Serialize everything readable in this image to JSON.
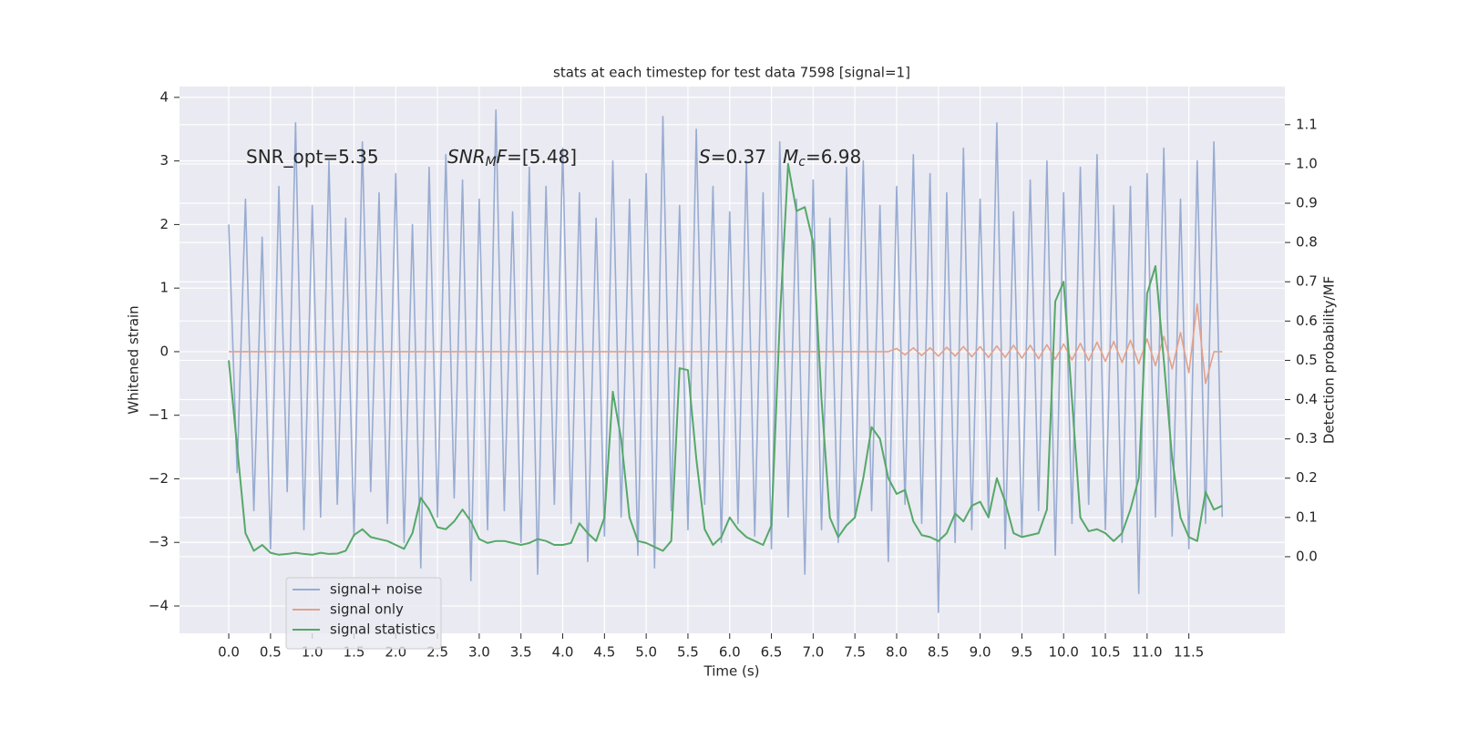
{
  "chart_data": {
    "type": "line",
    "title": "stats at each timestep for test data 7598 [signal=1]",
    "xlabel": "Time (s)",
    "ylabel": "Whitened strain",
    "y2label": "Detection probability/MF",
    "annotations": [
      [
        "SNR_opt=5.35"
      ],
      [
        "SNR",
        "M",
        "F",
        "=[5.48]"
      ],
      [
        "S",
        "=0.37"
      ],
      [
        "M",
        "c",
        "=6.98"
      ]
    ],
    "grid": true,
    "legend": "lower left",
    "xlim": [
      -0.59,
      12.65
    ],
    "ylim": [
      -4.43,
      4.17
    ],
    "y2lim": [
      -0.195,
      1.197
    ],
    "xticks": [
      {
        "value": 0,
        "label": "0.0"
      },
      {
        "value": 0.5,
        "label": "0.5"
      },
      {
        "value": 1,
        "label": "1.0"
      },
      {
        "value": 1.5,
        "label": "1.5"
      },
      {
        "value": 2,
        "label": "2.0"
      },
      {
        "value": 2.5,
        "label": "2.5"
      },
      {
        "value": 3,
        "label": "3.0"
      },
      {
        "value": 3.5,
        "label": "3.5"
      },
      {
        "value": 4,
        "label": "4.0"
      },
      {
        "value": 4.5,
        "label": "4.5"
      },
      {
        "value": 5,
        "label": "5.0"
      },
      {
        "value": 5.5,
        "label": "5.5"
      },
      {
        "value": 6,
        "label": "6.0"
      },
      {
        "value": 6.5,
        "label": "6.5"
      },
      {
        "value": 7,
        "label": "7.0"
      },
      {
        "value": 7.5,
        "label": "7.5"
      },
      {
        "value": 8,
        "label": "8.0"
      },
      {
        "value": 8.5,
        "label": "8.5"
      },
      {
        "value": 9,
        "label": "9.0"
      },
      {
        "value": 9.5,
        "label": "9.5"
      },
      {
        "value": 10,
        "label": "10.0"
      },
      {
        "value": 10.5,
        "label": "10.5"
      },
      {
        "value": 11,
        "label": "11.0"
      },
      {
        "value": 11.5,
        "label": "11.5"
      }
    ],
    "yticks": [
      {
        "value": -4,
        "label": "−4"
      },
      {
        "value": -3,
        "label": "−3"
      },
      {
        "value": -2,
        "label": "−2"
      },
      {
        "value": -1,
        "label": "−1"
      },
      0,
      1,
      2,
      3,
      4
    ],
    "y2ticks": [
      {
        "value": 0,
        "label": "0.0"
      },
      {
        "value": 0.1,
        "label": "0.1"
      },
      {
        "value": 0.2,
        "label": "0.2"
      },
      {
        "value": 0.3,
        "label": "0.3"
      },
      {
        "value": 0.4,
        "label": "0.4"
      },
      {
        "value": 0.5,
        "label": "0.5"
      },
      {
        "value": 0.6,
        "label": "0.6"
      },
      {
        "value": 0.7,
        "label": "0.7"
      },
      {
        "value": 0.8,
        "label": "0.8"
      },
      {
        "value": 0.9,
        "label": "0.9"
      },
      {
        "value": 1,
        "label": "1.0"
      },
      {
        "value": 1.1,
        "label": "1.1"
      }
    ],
    "x": [
      0,
      0.1,
      0.2,
      0.3,
      0.4,
      0.5,
      0.6,
      0.7,
      0.8,
      0.9,
      1,
      1.1,
      1.2,
      1.3,
      1.4,
      1.5,
      1.6,
      1.7,
      1.8,
      1.9,
      2,
      2.1,
      2.2,
      2.3,
      2.4,
      2.5,
      2.6,
      2.7,
      2.8,
      2.9,
      3,
      3.1,
      3.2,
      3.3,
      3.4,
      3.5,
      3.6,
      3.7,
      3.8,
      3.9,
      4,
      4.1,
      4.2,
      4.3,
      4.4,
      4.5,
      4.6,
      4.7,
      4.8,
      4.9,
      5,
      5.1,
      5.2,
      5.3,
      5.4,
      5.5,
      5.6,
      5.7,
      5.8,
      5.9,
      6,
      6.1,
      6.2,
      6.3,
      6.4,
      6.5,
      6.6,
      6.7,
      6.8,
      6.9,
      7,
      7.1,
      7.2,
      7.3,
      7.4,
      7.5,
      7.6,
      7.7,
      7.8,
      7.9,
      8,
      8.1,
      8.2,
      8.3,
      8.4,
      8.5,
      8.6,
      8.7,
      8.8,
      8.9,
      9,
      9.1,
      9.2,
      9.3,
      9.4,
      9.5,
      9.6,
      9.7,
      9.8,
      9.9,
      10,
      10.1,
      10.2,
      10.3,
      10.4,
      10.5,
      10.6,
      10.7,
      10.8,
      10.9,
      11,
      11.1,
      11.2,
      11.3,
      11.4,
      11.5,
      11.6,
      11.7,
      11.8,
      11.9
    ],
    "series": [
      {
        "name": "signal+ noise",
        "color": "#98acd1",
        "values": [
          2.0,
          -1.9,
          2.4,
          -2.5,
          1.8,
          -3.1,
          2.6,
          -2.2,
          3.6,
          -2.8,
          2.3,
          -2.6,
          3.0,
          -2.4,
          2.1,
          -2.9,
          3.3,
          -2.2,
          2.5,
          -2.7,
          2.8,
          -3.0,
          2.0,
          -3.4,
          2.9,
          -2.6,
          3.1,
          -2.3,
          2.7,
          -3.6,
          2.4,
          -2.8,
          3.8,
          -2.5,
          2.2,
          -3.0,
          2.9,
          -3.5,
          2.6,
          -2.4,
          3.2,
          -2.7,
          2.5,
          -3.3,
          2.1,
          -2.9,
          3.0,
          -2.6,
          2.4,
          -3.2,
          2.8,
          -3.4,
          3.7,
          -2.5,
          2.3,
          -2.8,
          3.5,
          -2.4,
          2.6,
          -3.0,
          2.2,
          -2.7,
          3.0,
          -2.9,
          2.5,
          -3.1,
          3.3,
          -2.6,
          2.4,
          -3.5,
          2.7,
          -2.8,
          2.1,
          -3.0,
          2.9,
          -2.6,
          3.0,
          -2.5,
          2.3,
          -3.3,
          2.6,
          -2.4,
          3.1,
          -2.7,
          2.8,
          -4.1,
          2.5,
          -3.0,
          3.2,
          -2.8,
          2.4,
          -2.6,
          3.6,
          -3.1,
          2.2,
          -2.9,
          2.7,
          -2.5,
          3.0,
          -3.2,
          2.5,
          -2.7,
          2.9,
          -2.4,
          3.1,
          -2.8,
          2.3,
          -3.0,
          2.6,
          -3.8,
          2.8,
          -2.6,
          3.2,
          -2.9,
          2.4,
          -3.1,
          3.0,
          -2.7,
          3.3,
          -2.6
        ]
      },
      {
        "name": "signal only",
        "color": "#e3a18a",
        "values": [
          0,
          0,
          0,
          0,
          0,
          0,
          0,
          0,
          0,
          0,
          0,
          0,
          0,
          0,
          0,
          0,
          0,
          0,
          0,
          0,
          0,
          0,
          0,
          0,
          0,
          0,
          0,
          0,
          0,
          0,
          0,
          0,
          0,
          0,
          0,
          0,
          0,
          0,
          0,
          0,
          0,
          0,
          0,
          0,
          0,
          0,
          0,
          0,
          0,
          0,
          0,
          0,
          0,
          0,
          0,
          0,
          0,
          0,
          0,
          0,
          0,
          0,
          0,
          0,
          0,
          0,
          0,
          0,
          0,
          0,
          0,
          0,
          0,
          0,
          0,
          0,
          0,
          0,
          0,
          0,
          0.05,
          -0.05,
          0.06,
          -0.06,
          0.06,
          -0.07,
          0.07,
          -0.07,
          0.08,
          -0.08,
          0.08,
          -0.09,
          0.09,
          -0.09,
          0.1,
          -0.1,
          0.1,
          -0.11,
          0.11,
          -0.12,
          0.12,
          -0.13,
          0.13,
          -0.14,
          0.15,
          -0.15,
          0.16,
          -0.17,
          0.18,
          -0.19,
          0.2,
          -0.22,
          0.24,
          -0.27,
          0.3,
          -0.33,
          0.75,
          -0.5,
          0,
          0
        ]
      },
      {
        "name": "signal statistics",
        "color": "#55a868",
        "axis": "y2",
        "values": [
          0.5,
          0.28,
          0.06,
          0.015,
          0.03,
          0.01,
          0.005,
          0.007,
          0.01,
          0.007,
          0.005,
          0.01,
          0.007,
          0.008,
          0.015,
          0.055,
          0.07,
          0.05,
          0.045,
          0.04,
          0.03,
          0.02,
          0.06,
          0.15,
          0.12,
          0.075,
          0.07,
          0.09,
          0.12,
          0.09,
          0.045,
          0.035,
          0.04,
          0.04,
          0.035,
          0.03,
          0.035,
          0.045,
          0.04,
          0.03,
          0.03,
          0.035,
          0.085,
          0.06,
          0.04,
          0.1,
          0.42,
          0.3,
          0.1,
          0.04,
          0.035,
          0.025,
          0.015,
          0.04,
          0.48,
          0.475,
          0.25,
          0.07,
          0.03,
          0.05,
          0.1,
          0.07,
          0.05,
          0.04,
          0.03,
          0.08,
          0.6,
          1.0,
          0.88,
          0.89,
          0.8,
          0.4,
          0.1,
          0.05,
          0.08,
          0.1,
          0.2,
          0.33,
          0.3,
          0.2,
          0.16,
          0.17,
          0.09,
          0.055,
          0.05,
          0.04,
          0.06,
          0.11,
          0.09,
          0.13,
          0.14,
          0.1,
          0.2,
          0.14,
          0.06,
          0.05,
          0.055,
          0.06,
          0.12,
          0.65,
          0.7,
          0.4,
          0.1,
          0.065,
          0.07,
          0.06,
          0.04,
          0.06,
          0.12,
          0.2,
          0.67,
          0.74,
          0.5,
          0.25,
          0.1,
          0.05,
          0.04,
          0.165,
          0.12,
          0.13
        ]
      }
    ]
  }
}
